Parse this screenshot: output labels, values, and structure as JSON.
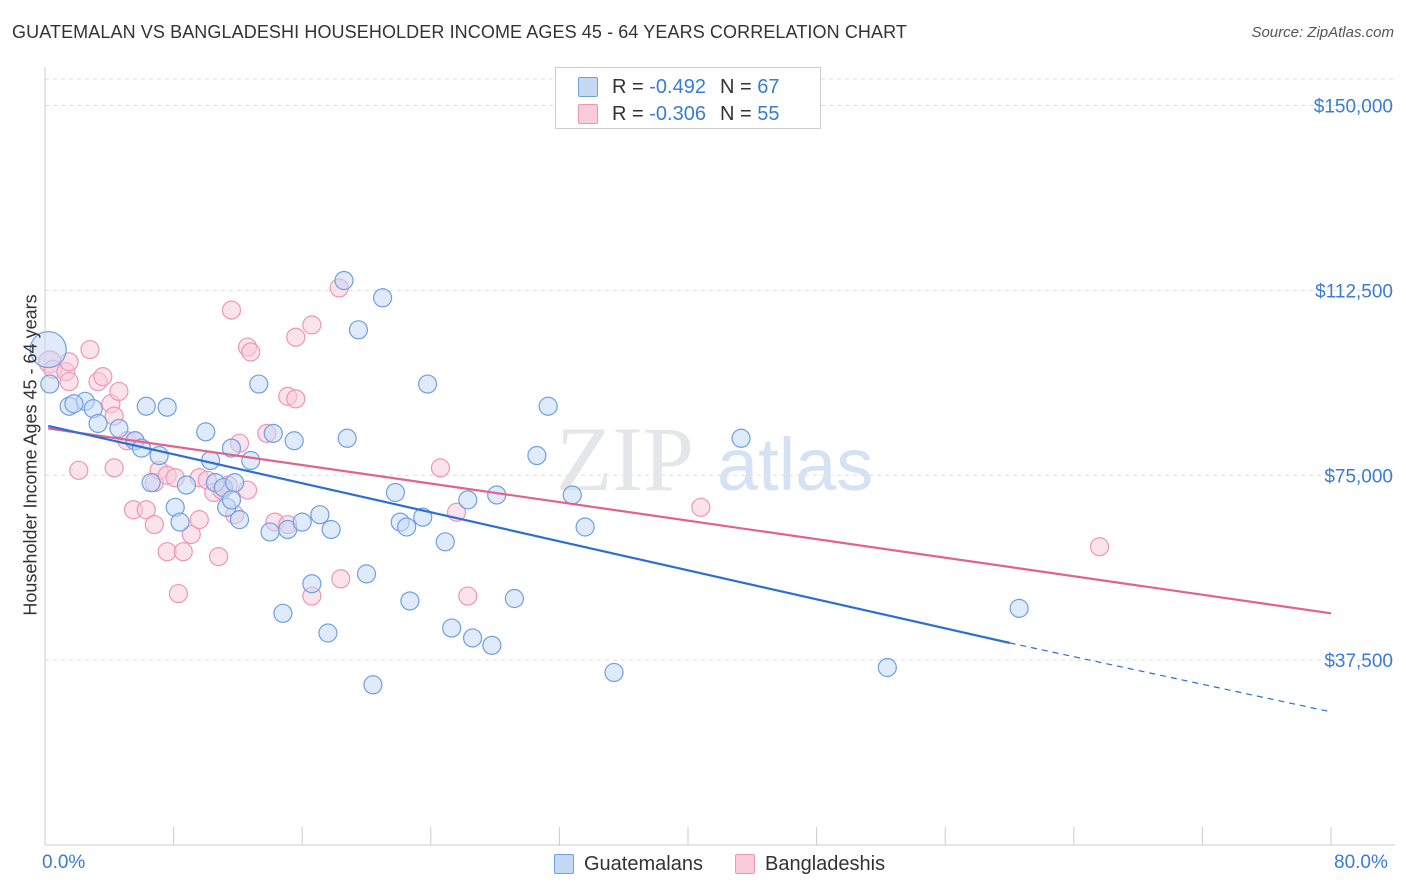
{
  "title": "GUATEMALAN VS BANGLADESHI HOUSEHOLDER INCOME AGES 45 - 64 YEARS CORRELATION CHART",
  "source": "Source: ZipAtlas.com",
  "watermark": {
    "zip": "ZIP",
    "atlas": "atlas"
  },
  "legend": {
    "rows": [
      {
        "r_label": "R = ",
        "r_value": "-0.492",
        "n_label": "N = ",
        "n_value": "67"
      },
      {
        "r_label": "R = ",
        "r_value": "-0.306",
        "n_label": "N = ",
        "n_value": "55"
      }
    ]
  },
  "chart_data": {
    "type": "scatter",
    "title": "GUATEMALAN VS BANGLADESHI HOUSEHOLDER INCOME AGES 45 - 64 YEARS CORRELATION CHART",
    "xlabel": "",
    "ylabel": "Householder Income Ages 45 - 64 years",
    "xlim": [
      0,
      80
    ],
    "ylim": [
      0,
      157000
    ],
    "x_tick_labels": [
      "0.0%",
      "80.0%"
    ],
    "y_ticks": [
      37500,
      75000,
      112500,
      150000
    ],
    "y_tick_labels": [
      "$37,500",
      "$75,000",
      "$112,500",
      "$150,000"
    ],
    "grid": true,
    "legend_position": "top-center",
    "colors": {
      "guatemalans": "#6fa0e0",
      "bangladeshis": "#ef96b4",
      "trend_blue": "#2d6fd1",
      "trend_pink": "#e0628f"
    },
    "series": [
      {
        "name": "Guatemalans",
        "r": -0.492,
        "n": 67,
        "trend": {
          "x0": 0.2,
          "y0": 85000,
          "x1": 60,
          "y1": 41000,
          "dashed_to_x": 80,
          "dashed_to_y": 27000
        },
        "points": [
          [
            0.2,
            100500,
            18
          ],
          [
            0.3,
            93500,
            9
          ],
          [
            1.5,
            89000,
            9
          ],
          [
            2.5,
            90000,
            9
          ],
          [
            1.8,
            89500,
            9
          ],
          [
            3.0,
            88500,
            9
          ],
          [
            3.3,
            85500,
            9
          ],
          [
            4.6,
            84500,
            9
          ],
          [
            5.6,
            82000,
            9
          ],
          [
            6.0,
            80500,
            9
          ],
          [
            6.3,
            89000,
            9
          ],
          [
            7.6,
            88800,
            9
          ],
          [
            10.0,
            83800,
            9
          ],
          [
            10.3,
            78000,
            9
          ],
          [
            11.6,
            80500,
            9
          ],
          [
            12.8,
            78000,
            9
          ],
          [
            13.3,
            93500,
            9
          ],
          [
            14.2,
            83500,
            9
          ],
          [
            15.5,
            82000,
            9
          ],
          [
            6.6,
            73500,
            9
          ],
          [
            7.1,
            79000,
            9
          ],
          [
            8.8,
            73000,
            9
          ],
          [
            8.1,
            68500,
            9
          ],
          [
            8.4,
            65500,
            9
          ],
          [
            10.6,
            73500,
            9
          ],
          [
            11.1,
            72500,
            9
          ],
          [
            11.8,
            73500,
            9
          ],
          [
            11.3,
            68500,
            9
          ],
          [
            11.6,
            70000,
            9
          ],
          [
            12.1,
            66000,
            9
          ],
          [
            14.0,
            63500,
            9
          ],
          [
            15.1,
            64000,
            9
          ],
          [
            16.0,
            65500,
            9
          ],
          [
            17.1,
            67000,
            9
          ],
          [
            17.8,
            64000,
            9
          ],
          [
            18.8,
            82500,
            9
          ],
          [
            18.6,
            114500,
            9
          ],
          [
            19.5,
            104500,
            9
          ],
          [
            21.0,
            111000,
            9
          ],
          [
            21.8,
            71500,
            9
          ],
          [
            22.1,
            65500,
            9
          ],
          [
            22.5,
            64500,
            9
          ],
          [
            23.5,
            66500,
            9
          ],
          [
            23.8,
            93500,
            9
          ],
          [
            24.9,
            61500,
            9
          ],
          [
            26.3,
            70000,
            9
          ],
          [
            28.1,
            71000,
            9
          ],
          [
            30.6,
            79000,
            9
          ],
          [
            31.3,
            89000,
            9
          ],
          [
            32.8,
            71000,
            9
          ],
          [
            33.6,
            64500,
            9
          ],
          [
            43.3,
            82500,
            9
          ],
          [
            20.0,
            55000,
            9
          ],
          [
            16.6,
            53000,
            9
          ],
          [
            14.8,
            47000,
            9
          ],
          [
            17.6,
            43000,
            9
          ],
          [
            22.7,
            49500,
            9
          ],
          [
            25.3,
            44000,
            9
          ],
          [
            26.6,
            42000,
            9
          ],
          [
            27.8,
            40500,
            9
          ],
          [
            29.2,
            50000,
            9
          ],
          [
            35.4,
            35000,
            9
          ],
          [
            52.4,
            36000,
            9
          ],
          [
            60.6,
            48000,
            9
          ],
          [
            20.4,
            32500,
            9
          ]
        ]
      },
      {
        "name": "Bangladeshis",
        "r": -0.306,
        "n": 55,
        "trend": {
          "x0": 0.2,
          "y0": 84500,
          "x1": 80,
          "y1": 47000
        },
        "points": [
          [
            0.3,
            98000,
            11
          ],
          [
            0.5,
            96500,
            9
          ],
          [
            1.3,
            96000,
            9
          ],
          [
            1.5,
            98000,
            9
          ],
          [
            2.8,
            100500,
            9
          ],
          [
            1.5,
            94000,
            9
          ],
          [
            3.3,
            94000,
            9
          ],
          [
            3.6,
            95000,
            9
          ],
          [
            4.1,
            89500,
            9
          ],
          [
            4.3,
            87000,
            9
          ],
          [
            4.6,
            92000,
            9
          ],
          [
            5.1,
            82000,
            9
          ],
          [
            2.1,
            76000,
            9
          ],
          [
            4.3,
            76500,
            9
          ],
          [
            5.6,
            82000,
            9
          ],
          [
            6.8,
            73500,
            9
          ],
          [
            7.1,
            76000,
            9
          ],
          [
            7.6,
            75000,
            9
          ],
          [
            8.1,
            74500,
            9
          ],
          [
            9.6,
            74500,
            9
          ],
          [
            10.1,
            74000,
            9
          ],
          [
            10.5,
            71500,
            9
          ],
          [
            11.4,
            73000,
            9
          ],
          [
            11.0,
            72000,
            9
          ],
          [
            12.6,
            72000,
            9
          ],
          [
            13.8,
            83500,
            9
          ],
          [
            12.1,
            81500,
            9
          ],
          [
            11.6,
            108500,
            9
          ],
          [
            12.6,
            101000,
            9
          ],
          [
            12.8,
            100000,
            9
          ],
          [
            15.6,
            103000,
            9
          ],
          [
            16.6,
            105500,
            9
          ],
          [
            15.1,
            91000,
            9
          ],
          [
            15.6,
            90500,
            9
          ],
          [
            18.3,
            113000,
            9
          ],
          [
            5.5,
            68000,
            9
          ],
          [
            6.3,
            68000,
            9
          ],
          [
            6.8,
            65000,
            9
          ],
          [
            7.6,
            59500,
            9
          ],
          [
            8.6,
            59500,
            9
          ],
          [
            9.1,
            63000,
            9
          ],
          [
            9.6,
            66000,
            9
          ],
          [
            10.8,
            58500,
            9
          ],
          [
            11.8,
            67000,
            9
          ],
          [
            14.3,
            65500,
            9
          ],
          [
            15.1,
            65000,
            9
          ],
          [
            16.6,
            50500,
            9
          ],
          [
            18.4,
            54000,
            9
          ],
          [
            24.6,
            76500,
            9
          ],
          [
            25.6,
            67500,
            9
          ],
          [
            8.3,
            51000,
            9
          ],
          [
            26.3,
            50500,
            9
          ],
          [
            40.8,
            68500,
            9
          ],
          [
            65.6,
            60500,
            9
          ]
        ]
      }
    ]
  },
  "bottom_legend": [
    "Guatemalans",
    "Bangladeshis"
  ]
}
